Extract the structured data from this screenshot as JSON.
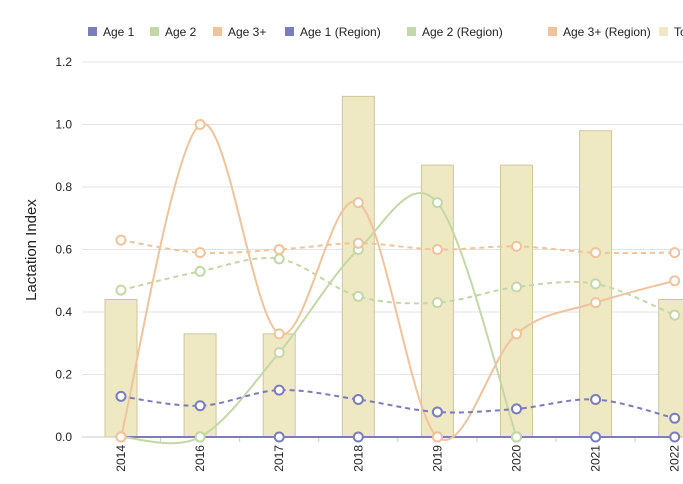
{
  "chart_data": {
    "type": "combo",
    "y_label": "Lactation Index",
    "categories": [
      "2014",
      "2016",
      "2017",
      "2018",
      "2019",
      "2020",
      "2021",
      "2022"
    ],
    "ylim": [
      0,
      1.2
    ],
    "yticks": [
      {
        "value": 0,
        "label": "0.0"
      },
      0.2,
      0.4,
      0.6,
      0.8,
      {
        "value": 1,
        "label": "1.0"
      },
      1.2
    ],
    "grid": true,
    "series": [
      {
        "name": "Age 1",
        "type": "line",
        "dashed": false,
        "color": "#7b7bbd",
        "values": [
          0,
          0,
          0,
          0,
          0,
          0,
          0,
          0
        ]
      },
      {
        "name": "Age 2",
        "type": "line",
        "dashed": false,
        "color": "#c3d8a6",
        "values": [
          0,
          0,
          0.27,
          0.6,
          0.75,
          0,
          null,
          null
        ]
      },
      {
        "name": "Age 3+",
        "type": "line",
        "dashed": false,
        "color": "#f2c39b",
        "values": [
          0,
          1.0,
          0.33,
          0.75,
          0,
          0.33,
          0.43,
          0.5
        ]
      },
      {
        "name": "Age 1 (Region)",
        "type": "line",
        "dashed": true,
        "color": "#7b7bbd",
        "values": [
          0.13,
          0.1,
          0.15,
          0.12,
          0.08,
          0.09,
          0.12,
          0.06
        ]
      },
      {
        "name": "Age 2 (Region)",
        "type": "line",
        "dashed": true,
        "color": "#c3d8a6",
        "values": [
          0.47,
          0.53,
          0.57,
          0.45,
          0.43,
          0.48,
          0.49,
          0.39
        ]
      },
      {
        "name": "Age 3+ (Region)",
        "type": "line",
        "dashed": true,
        "color": "#f2c39b",
        "values": [
          0.63,
          0.59,
          0.6,
          0.62,
          0.6,
          0.61,
          0.59,
          0.59
        ]
      },
      {
        "name": "Total Do",
        "type": "bar",
        "color": "#eee8c3",
        "values": [
          0.44,
          0.33,
          0.33,
          1.09,
          0.87,
          0.87,
          0.98,
          0.44
        ]
      }
    ]
  }
}
